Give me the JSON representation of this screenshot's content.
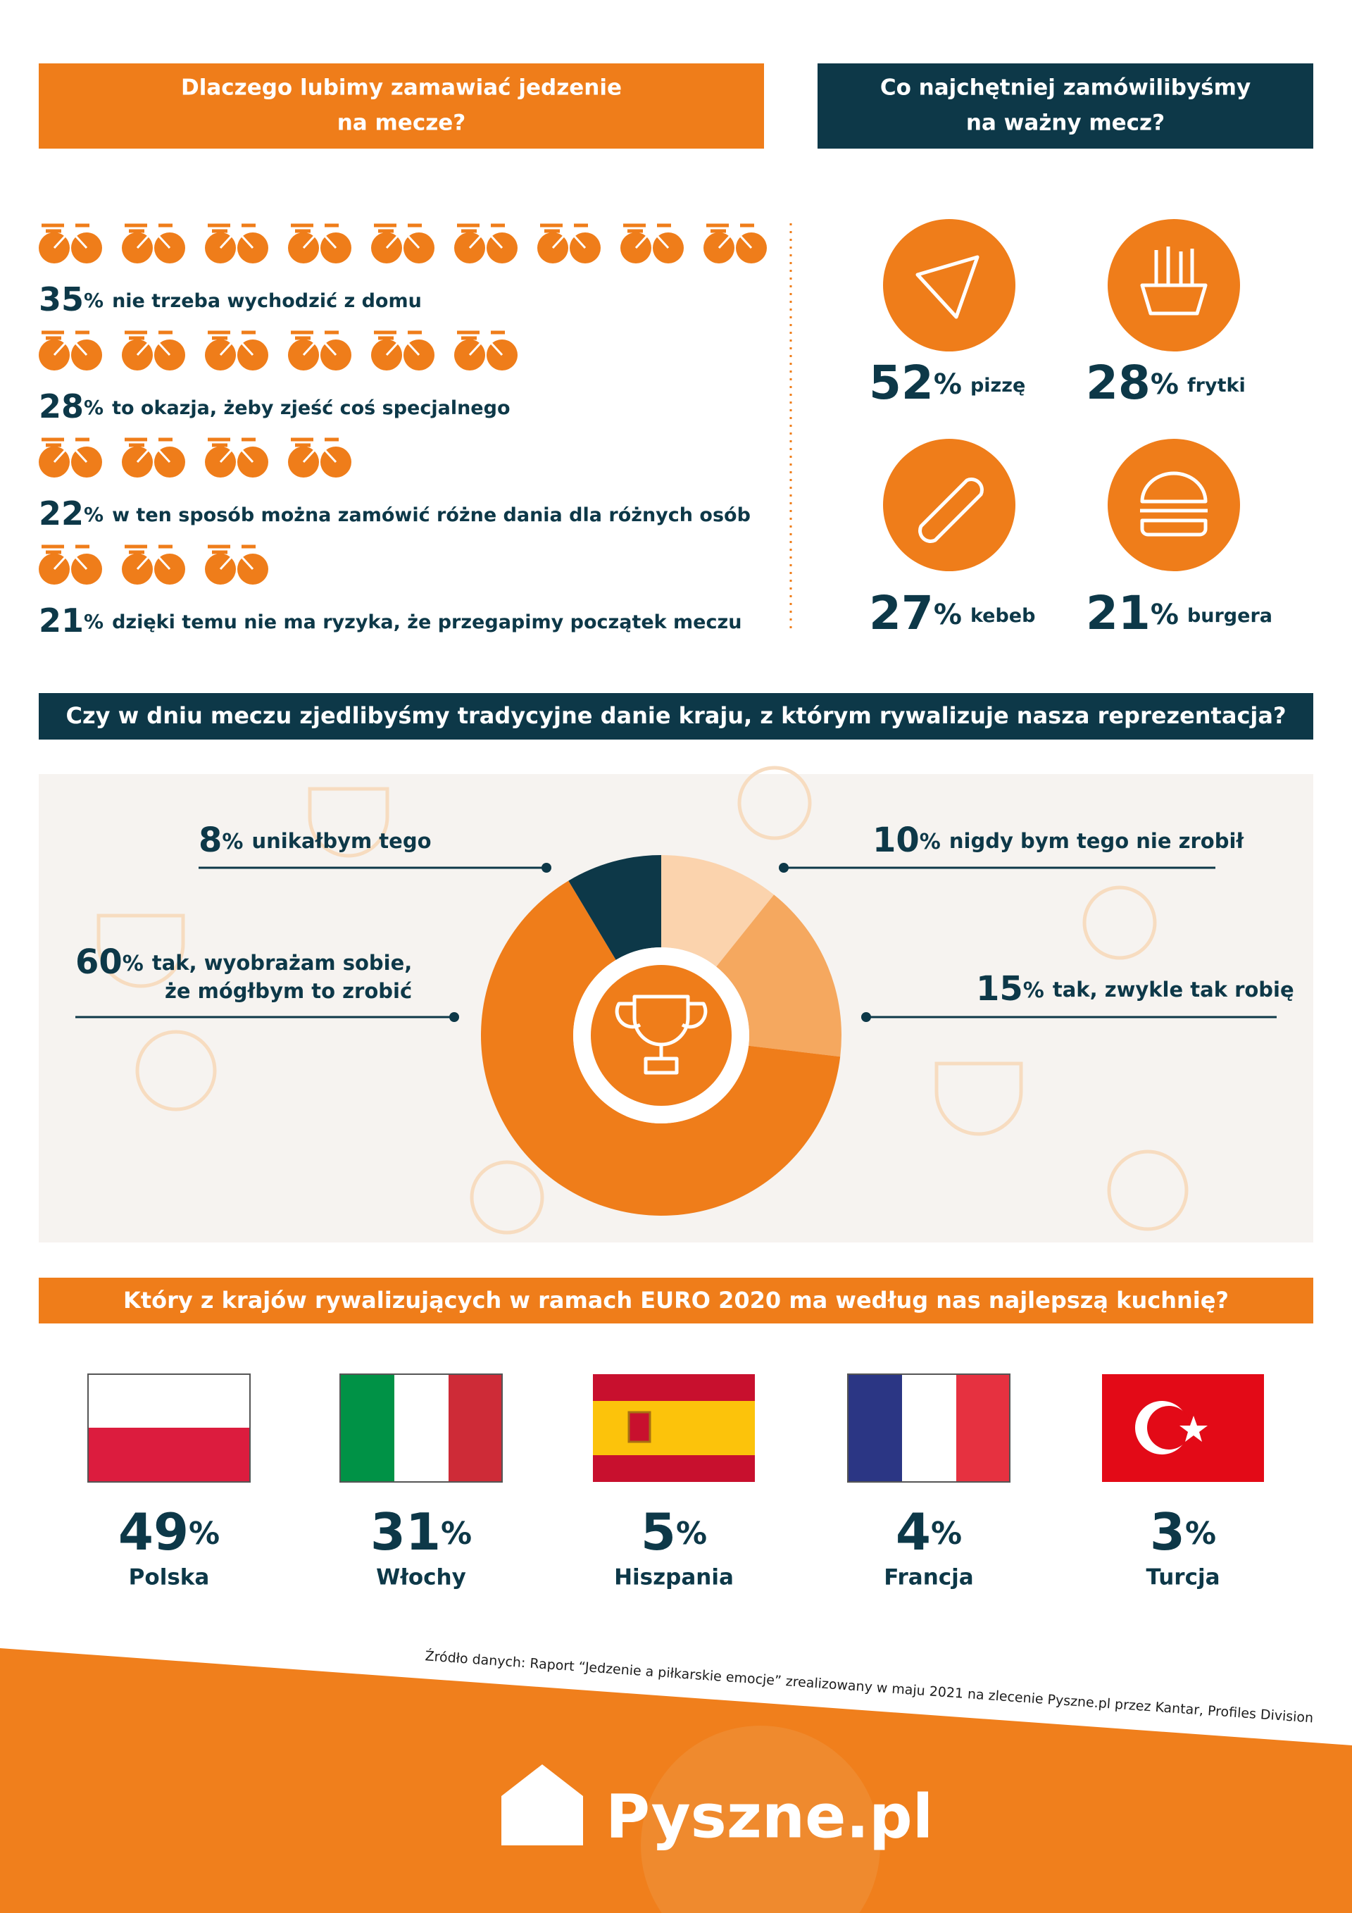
{
  "unit": "%",
  "reasons": {
    "title_lines": [
      "Dlaczego lubimy zamawiać jedzenie",
      "na mecze?"
    ],
    "items": [
      {
        "value": 35,
        "label": "nie trzeba wychodzić z domu"
      },
      {
        "value": 28,
        "label": "to okazja, żeby zjeść coś specjalnego"
      },
      {
        "value": 22,
        "label": "w ten sposób można zamówić różne dania dla różnych osób"
      },
      {
        "value": 21,
        "label": "dzięki temu nie ma ryzyka, że przegapimy początek meczu"
      }
    ]
  },
  "food": {
    "title_lines": [
      "Co najchętniej zamówilibyśmy",
      "na ważny mecz?"
    ],
    "items": [
      {
        "value": 52,
        "label": "pizzę"
      },
      {
        "value": 28,
        "label": "frytki"
      },
      {
        "value": 27,
        "label": "kebeb"
      },
      {
        "value": 21,
        "label": "burgera"
      }
    ]
  },
  "rival_dish": {
    "title": "Czy w dniu meczu zjedlibyśmy tradycyjne danie kraju, z którym rywalizuje nasza reprezentacja?",
    "items": [
      {
        "value": 10,
        "label_lines": [
          "nigdy bym tego nie zrobił"
        ],
        "color": "#fbd3ad"
      },
      {
        "value": 15,
        "label_lines": [
          "tak, zwykle tak robię"
        ],
        "color": "#f5a85f"
      },
      {
        "value": 60,
        "label_lines": [
          "tak, wyobrażam sobie,",
          "że mógłbym to zrobić"
        ],
        "color": "#ef7d1a"
      },
      {
        "value": 8,
        "label_lines": [
          "unikałbym tego"
        ],
        "color": "#0d3848"
      }
    ]
  },
  "cuisine": {
    "title": "Który z krajów rywalizujących w ramach EURO 2020 ma według nas najlepszą kuchnię?",
    "items": [
      {
        "value": 49,
        "label": "Polska"
      },
      {
        "value": 31,
        "label": "Włochy"
      },
      {
        "value": 5,
        "label": "Hiszpania"
      },
      {
        "value": 4,
        "label": "Francja"
      },
      {
        "value": 3,
        "label": "Turcja"
      }
    ]
  },
  "source": "Źródło danych: Raport “Jedzenie a piłkarskie emocje” zrealizowany w maju 2021 na zlecenie Pyszne.pl przez Kantar, Profiles Division",
  "logo": "Pyszne.pl"
}
